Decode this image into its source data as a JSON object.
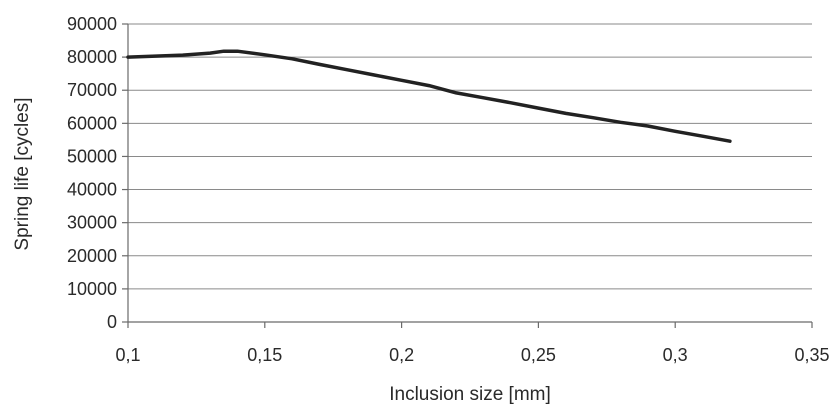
{
  "chart_data": {
    "type": "line",
    "xlabel": "Inclusion size [mm]",
    "ylabel": "Spring life [cycles]",
    "xlim": [
      0.1,
      0.35
    ],
    "ylim": [
      0,
      90000
    ],
    "x_ticks": [
      0.1,
      0.15,
      0.2,
      0.25,
      0.3,
      0.35
    ],
    "x_tick_labels": [
      "0,1",
      "0,15",
      "0,2",
      "0,25",
      "0,3",
      "0,35"
    ],
    "y_ticks": [
      0,
      10000,
      20000,
      30000,
      40000,
      50000,
      60000,
      70000,
      80000,
      90000
    ],
    "y_tick_labels": [
      "0",
      "10000",
      "20000",
      "30000",
      "40000",
      "50000",
      "60000",
      "70000",
      "80000",
      "90000"
    ],
    "grid": true,
    "legend": "none",
    "series": [
      {
        "color": "#222222",
        "x": [
          0.1,
          0.11,
          0.12,
          0.13,
          0.135,
          0.14,
          0.15,
          0.16,
          0.17,
          0.18,
          0.19,
          0.2,
          0.21,
          0.22,
          0.23,
          0.24,
          0.25,
          0.26,
          0.27,
          0.28,
          0.29,
          0.3,
          0.31,
          0.32
        ],
        "y": [
          80000,
          80300,
          80600,
          81200,
          81800,
          81800,
          80700,
          79500,
          77800,
          76200,
          74600,
          73000,
          71400,
          69200,
          67700,
          66200,
          64600,
          63000,
          61700,
          60300,
          59200,
          57600,
          56100,
          54600
        ]
      }
    ]
  }
}
